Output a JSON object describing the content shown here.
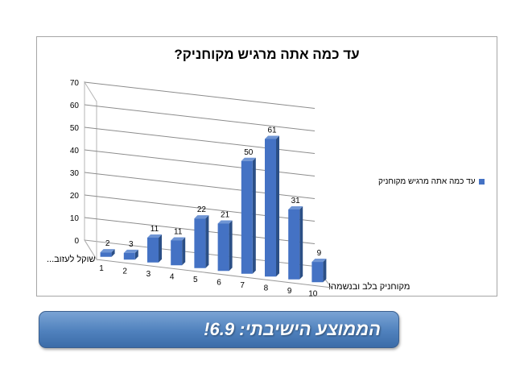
{
  "chart_data": {
    "type": "bar",
    "title": "עד כמה אתה מרגיש מקוחניק?",
    "categories": [
      "1",
      "2",
      "3",
      "4",
      "5",
      "6",
      "7",
      "8",
      "9",
      "10"
    ],
    "series": [
      {
        "name": "עד כמה אתה מרגיש מקוחניק",
        "values": [
          2,
          3,
          11,
          11,
          22,
          21,
          50,
          61,
          31,
          9
        ]
      }
    ],
    "yticks": [
      0,
      10,
      20,
      30,
      40,
      50,
      60,
      70
    ],
    "ylim": [
      0,
      70
    ],
    "grid": true,
    "legend": "right",
    "annotations": {
      "low_end": "שוקל לעזוב...",
      "high_end": "מקוחניק בלב ובנשמה!"
    },
    "colors": {
      "bar": "#4472c4"
    }
  },
  "banner": {
    "text": "הממוצע הישיבתי: 6.9!"
  }
}
